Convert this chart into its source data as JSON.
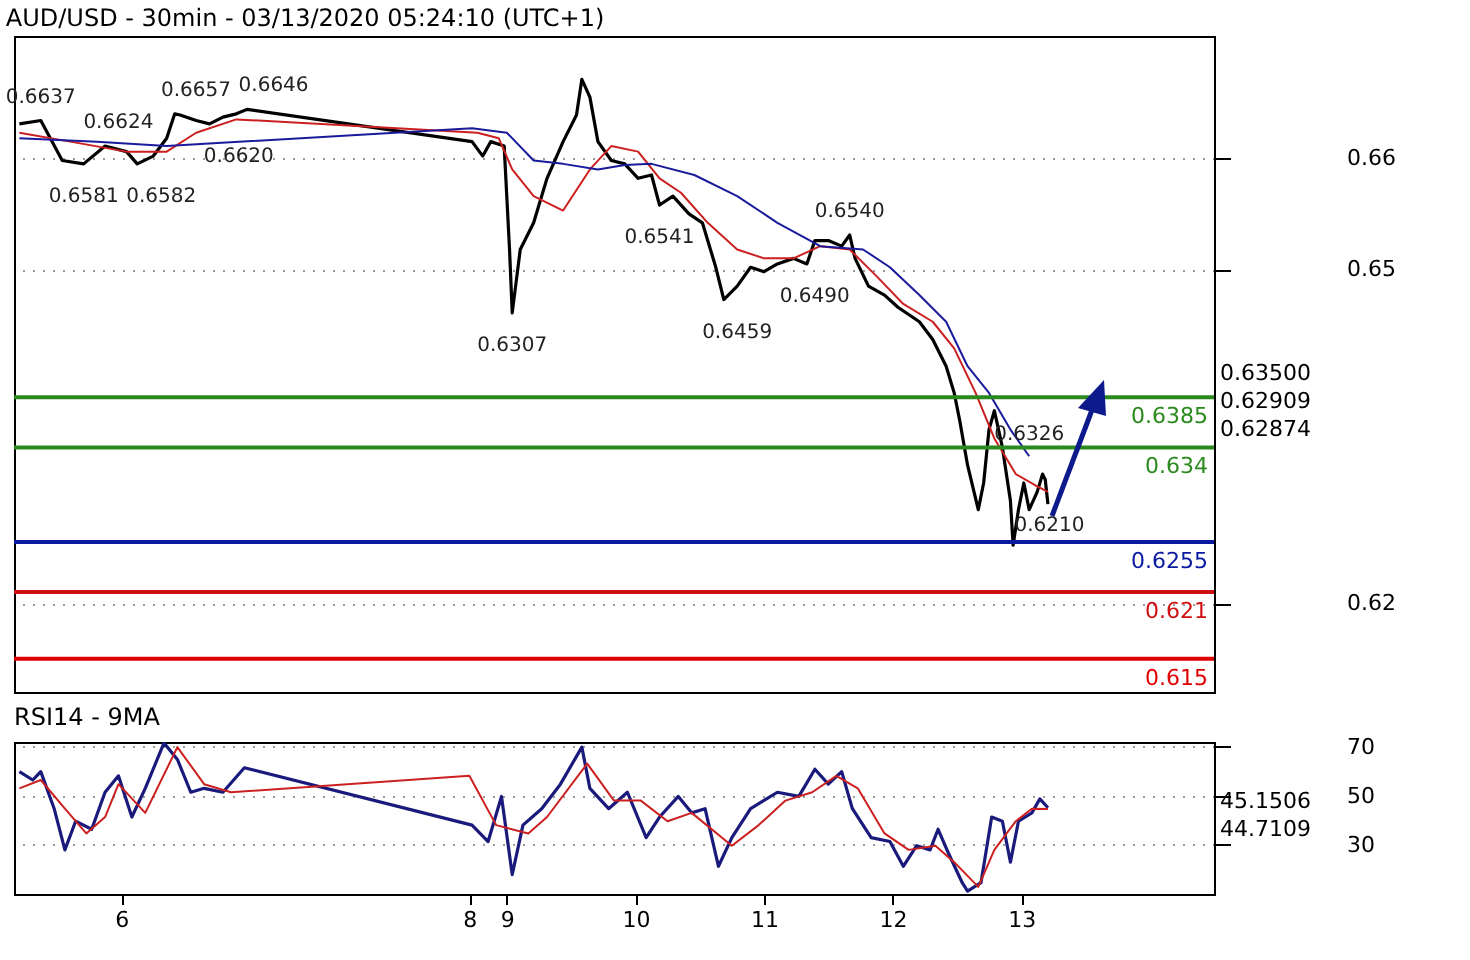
{
  "chart_data": [
    {
      "type": "line",
      "title": "AUD/USD - 30min - 03/13/2020 05:24:10 (UTC+1)",
      "xlim": [
        "2020-03-05T04:00",
        "2020-03-14T12:00"
      ],
      "ylim": [
        0.612,
        0.671
      ],
      "yticks": [
        0.66,
        0.65,
        0.62
      ],
      "grid": "y",
      "tick_labels": "y",
      "series": [
        {
          "color": "#000000",
          "x": [
            "2020-03-05T05:00",
            "2020-03-05T09:00",
            "2020-03-05T13:00",
            "2020-03-05T17:00",
            "2020-03-05T21:00",
            "2020-03-06T01:00",
            "2020-03-06T03:00",
            "2020-03-06T06:00",
            "2020-03-06T08:30",
            "2020-03-06T10:00",
            "2020-03-06T11:00",
            "2020-03-06T14:00",
            "2020-03-06T16:30",
            "2020-03-06T19:00",
            "2020-03-06T21:30",
            "2020-03-06T23:30",
            "2020-03-08T17:30",
            "2020-03-08T19:30",
            "2020-03-08T21:00",
            "2020-03-08T23:30",
            "2020-03-09T00:30",
            "2020-03-09T01:00",
            "2020-03-09T02:30",
            "2020-03-09T05:00",
            "2020-03-09T07:30",
            "2020-03-09T10:30",
            "2020-03-09T13:00",
            "2020-03-09T14:00",
            "2020-03-09T15:30",
            "2020-03-09T17:00",
            "2020-03-09T19:30",
            "2020-03-09T22:00",
            "2020-03-10T00:30",
            "2020-03-10T03:00",
            "2020-03-10T04:30",
            "2020-03-10T07:00",
            "2020-03-10T10:00",
            "2020-03-10T12:30",
            "2020-03-10T15:00",
            "2020-03-10T16:30",
            "2020-03-10T19:00",
            "2020-03-10T21:30",
            "2020-03-11T00:00",
            "2020-03-11T02:30",
            "2020-03-11T05:30",
            "2020-03-11T08:00",
            "2020-03-11T09:30",
            "2020-03-11T12:00",
            "2020-03-11T14:30",
            "2020-03-11T16:00",
            "2020-03-11T17:00",
            "2020-03-11T19:30",
            "2020-03-11T22:30",
            "2020-03-12T01:00",
            "2020-03-12T05:00",
            "2020-03-12T07:30",
            "2020-03-12T10:00",
            "2020-03-12T11:30",
            "2020-03-12T12:30",
            "2020-03-12T14:00",
            "2020-03-12T16:00",
            "2020-03-12T17:00",
            "2020-03-12T18:00",
            "2020-03-12T19:00",
            "2020-03-12T20:30",
            "2020-03-12T22:00",
            "2020-03-12T22:30",
            "2020-03-12T23:30",
            "2020-03-13T00:30",
            "2020-03-13T01:30",
            "2020-03-13T03:00",
            "2020-03-13T04:00",
            "2020-03-13T04:30",
            "2020-03-13T05:00"
          ],
          "values": [
            0.6631,
            0.6634,
            0.6598,
            0.6595,
            0.6611,
            0.6606,
            0.6595,
            0.6602,
            0.6618,
            0.664,
            0.6639,
            0.6634,
            0.6631,
            0.6637,
            0.664,
            0.6644,
            0.6615,
            0.6602,
            0.6615,
            0.6611,
            0.6518,
            0.6461,
            0.6518,
            0.6542,
            0.6582,
            0.6615,
            0.6639,
            0.6671,
            0.6655,
            0.6615,
            0.6598,
            0.6595,
            0.6582,
            0.6585,
            0.6558,
            0.6566,
            0.655,
            0.6542,
            0.6502,
            0.6473,
            0.6485,
            0.6502,
            0.6498,
            0.6505,
            0.651,
            0.6505,
            0.6526,
            0.6526,
            0.6521,
            0.6531,
            0.651,
            0.6485,
            0.6477,
            0.6466,
            0.6453,
            0.6437,
            0.6413,
            0.6389,
            0.6365,
            0.6324,
            0.6284,
            0.6308,
            0.6356,
            0.6373,
            0.634,
            0.6292,
            0.6252,
            0.6284,
            0.6308,
            0.6284,
            0.63,
            0.6316,
            0.6311,
            0.6289
          ]
        },
        {
          "color": "#cc1f1f",
          "x": [
            "2020-03-05T05:00",
            "2020-03-05T14:30",
            "2020-03-06T01:00",
            "2020-03-06T08:30",
            "2020-03-06T14:00",
            "2020-03-06T21:30",
            "2020-03-08T18:30",
            "2020-03-08T22:30",
            "2020-03-09T01:00",
            "2020-03-09T05:00",
            "2020-03-09T10:30",
            "2020-03-09T15:30",
            "2020-03-09T19:30",
            "2020-03-10T00:30",
            "2020-03-10T04:30",
            "2020-03-10T08:30",
            "2020-03-10T13:30",
            "2020-03-10T19:00",
            "2020-03-11T00:00",
            "2020-03-11T05:30",
            "2020-03-11T10:30",
            "2020-03-11T16:00",
            "2020-03-11T21:00",
            "2020-03-12T02:00",
            "2020-03-12T07:30",
            "2020-03-12T11:30",
            "2020-03-12T15:30",
            "2020-03-12T19:00",
            "2020-03-12T23:00",
            "2020-03-13T03:00",
            "2020-03-13T05:00"
          ],
          "values": [
            0.6623,
            0.6615,
            0.6606,
            0.6606,
            0.6623,
            0.6635,
            0.6623,
            0.6618,
            0.659,
            0.6566,
            0.6553,
            0.659,
            0.6611,
            0.6606,
            0.6582,
            0.6569,
            0.6542,
            0.6518,
            0.651,
            0.651,
            0.6521,
            0.6518,
            0.6494,
            0.6469,
            0.6453,
            0.6429,
            0.6389,
            0.6348,
            0.6316,
            0.6305,
            0.63
          ]
        },
        {
          "color": "#1a1a9c",
          "x": [
            "2020-03-05T05:00",
            "2020-03-05T19:30",
            "2020-03-06T08:30",
            "2020-03-08T17:30",
            "2020-03-09T00:00",
            "2020-03-09T05:00",
            "2020-03-09T10:30",
            "2020-03-09T17:00",
            "2020-03-09T22:00",
            "2020-03-10T03:00",
            "2020-03-10T11:00",
            "2020-03-10T19:00",
            "2020-03-11T02:30",
            "2020-03-11T10:30",
            "2020-03-11T18:30",
            "2020-03-11T23:30",
            "2020-03-12T05:00",
            "2020-03-12T10:00",
            "2020-03-12T14:00",
            "2020-03-12T18:00",
            "2020-03-12T22:00",
            "2020-03-13T01:30"
          ],
          "values": [
            0.6618,
            0.6615,
            0.6611,
            0.6627,
            0.6623,
            0.6598,
            0.6595,
            0.659,
            0.6594,
            0.6595,
            0.6585,
            0.6566,
            0.6542,
            0.6521,
            0.6518,
            0.6502,
            0.6477,
            0.6453,
            0.6413,
            0.6389,
            0.6356,
            0.6332
          ]
        }
      ],
      "ref_lines": [
        {
          "axis": "y",
          "value": 0.6385,
          "label": "0.6385",
          "color": "#2a8a1e"
        },
        {
          "axis": "y",
          "value": 0.634,
          "label": "0.634",
          "color": "#2a8a1e"
        },
        {
          "axis": "y",
          "value": 0.6255,
          "label": "0.6255",
          "color": "#0a1aa0"
        },
        {
          "axis": "y",
          "value": 0.621,
          "label": "0.621",
          "color": "#d01010"
        },
        {
          "axis": "y",
          "value": 0.615,
          "label": "0.615",
          "color": "#e00000"
        }
      ],
      "annotations": [
        {
          "text": "0.6637",
          "x": "2020-03-05T09:00",
          "y": 0.6634
        },
        {
          "text": "0.6624",
          "x": "2020-03-05T21:00",
          "y": 0.6611
        },
        {
          "text": "0.6657",
          "x": "2020-03-06T10:00",
          "y": 0.664
        },
        {
          "text": "0.6646",
          "x": "2020-03-06T23:30",
          "y": 0.6644
        },
        {
          "text": "0.6581",
          "x": "2020-03-05T17:00",
          "y": 0.6595
        },
        {
          "text": "0.6582",
          "x": "2020-03-06T03:00",
          "y": 0.6595
        },
        {
          "text": "0.6620",
          "x": "2020-03-06T16:30",
          "y": 0.6631
        },
        {
          "text": "0.6541",
          "x": "2020-03-10T04:30",
          "y": 0.6558
        },
        {
          "text": "0.6459",
          "x": "2020-03-10T16:30",
          "y": 0.6473
        },
        {
          "text": "0.6490",
          "x": "2020-03-11T08:00",
          "y": 0.6505
        },
        {
          "text": "0.6540",
          "x": "2020-03-11T16:00",
          "y": 0.6531
        },
        {
          "text": "0.6307",
          "x": "2020-03-09T01:00",
          "y": 0.6461
        },
        {
          "text": "0.6210",
          "x": "2020-03-12T22:00",
          "y": 0.6252
        },
        {
          "text": "0.6326",
          "x": "2020-03-13T01:30",
          "y": 0.6332
        },
        "0.63500",
        "0.62909",
        "0.62874"
      ]
    },
    {
      "type": "line",
      "title": "RSI14 - 9MA",
      "xlim": [
        "2020-03-05T04:00",
        "2020-03-14T12:00"
      ],
      "xticks": [
        {
          "value": "2020-03-06",
          "label": "6"
        },
        {
          "value": "2020-03-08T17:00",
          "label": "8"
        },
        {
          "value": "2020-03-09",
          "label": "9"
        },
        {
          "value": "2020-03-10",
          "label": "10"
        },
        {
          "value": "2020-03-11",
          "label": "11"
        },
        {
          "value": "2020-03-12",
          "label": "12"
        },
        {
          "value": "2020-03-13",
          "label": "13"
        }
      ],
      "ylim": [
        10,
        72
      ],
      "yticks": [
        70,
        50,
        30
      ],
      "grid": "y",
      "series": [
        {
          "color": "#1a1a7c",
          "x": [
            "2020-03-05T05:00",
            "2020-03-05T07:30",
            "2020-03-05T09:00",
            "2020-03-05T11:30",
            "2020-03-05T13:30",
            "2020-03-05T15:30",
            "2020-03-05T18:30",
            "2020-03-05T21:00",
            "2020-03-05T23:30",
            "2020-03-06T02:00",
            "2020-03-06T04:30",
            "2020-03-06T08:00",
            "2020-03-06T10:30",
            "2020-03-06T13:00",
            "2020-03-06T15:30",
            "2020-03-06T19:00",
            "2020-03-06T23:00",
            "2020-03-08T17:30",
            "2020-03-08T20:30",
            "2020-03-08T23:00",
            "2020-03-09T01:00",
            "2020-03-09T03:00",
            "2020-03-09T06:30",
            "2020-03-09T10:00",
            "2020-03-09T14:00",
            "2020-03-09T15:30",
            "2020-03-09T19:00",
            "2020-03-09T22:30",
            "2020-03-10T02:00",
            "2020-03-10T04:30",
            "2020-03-10T08:00",
            "2020-03-10T10:30",
            "2020-03-10T13:00",
            "2020-03-10T15:30",
            "2020-03-10T18:00",
            "2020-03-10T21:30",
            "2020-03-11T02:30",
            "2020-03-11T06:30",
            "2020-03-11T09:30",
            "2020-03-11T12:00",
            "2020-03-11T14:30",
            "2020-03-11T16:30",
            "2020-03-11T20:00",
            "2020-03-11T23:30",
            "2020-03-12T02:00",
            "2020-03-12T04:30",
            "2020-03-12T07:00",
            "2020-03-12T08:30",
            "2020-03-12T10:30",
            "2020-03-12T13:00",
            "2020-03-12T14:00",
            "2020-03-12T16:30",
            "2020-03-12T18:30",
            "2020-03-12T20:30",
            "2020-03-12T22:00",
            "2020-03-12T23:30",
            "2020-03-13T02:00",
            "2020-03-13T03:30",
            "2020-03-13T05:00"
          ],
          "values": [
            59.9,
            56.5,
            59.9,
            44.8,
            28,
            39.7,
            36.4,
            51.5,
            58.2,
            41.4,
            53.1,
            71.6,
            64.9,
            51.5,
            53.1,
            51.5,
            61.5,
            38.1,
            31.4,
            49.8,
            17.9,
            38.1,
            44.8,
            54.8,
            69.9,
            53.1,
            44.8,
            51.5,
            33,
            41.4,
            49.8,
            43.1,
            44.8,
            21.3,
            33,
            44.8,
            51.5,
            49.8,
            60.9,
            54.8,
            59.9,
            44.8,
            33,
            31.4,
            21.3,
            29.7,
            28,
            36.4,
            26.3,
            14.6,
            11.2,
            14.6,
            41.4,
            39.7,
            23,
            39.7,
            43.1,
            48.8,
            45.2
          ]
        },
        {
          "color": "#cc1f1f",
          "x": [
            "2020-03-05T05:00",
            "2020-03-05T09:00",
            "2020-03-05T13:30",
            "2020-03-05T17:30",
            "2020-03-05T21:00",
            "2020-03-05T23:30",
            "2020-03-06T04:30",
            "2020-03-06T10:30",
            "2020-03-06T15:30",
            "2020-03-06T20:30",
            "2020-03-08T17:00",
            "2020-03-08T22:00",
            "2020-03-09T04:00",
            "2020-03-09T07:30",
            "2020-03-09T15:00",
            "2020-03-09T20:00",
            "2020-03-10T01:00",
            "2020-03-10T06:00",
            "2020-03-10T10:30",
            "2020-03-10T18:00",
            "2020-03-10T23:00",
            "2020-03-11T04:00",
            "2020-03-11T09:00",
            "2020-03-11T13:30",
            "2020-03-11T17:30",
            "2020-03-11T22:30",
            "2020-03-12T03:00",
            "2020-03-12T08:00",
            "2020-03-12T11:30",
            "2020-03-12T16:00",
            "2020-03-12T19:00",
            "2020-03-12T23:00",
            "2020-03-13T02:00",
            "2020-03-13T05:00"
          ],
          "values": [
            53.1,
            56.5,
            44.8,
            34.7,
            41.4,
            54.8,
            43.1,
            69.9,
            54.8,
            51.5,
            58.2,
            38.1,
            34.7,
            41.4,
            63.2,
            48.1,
            48.1,
            39.7,
            43.1,
            29.7,
            38.1,
            48.1,
            51.5,
            58.2,
            53.1,
            34.7,
            28,
            29.7,
            23,
            12.9,
            28,
            39.7,
            44.8,
            44.7
          ]
        }
      ],
      "annotations": [
        "45.1506",
        "44.7109"
      ]
    }
  ]
}
